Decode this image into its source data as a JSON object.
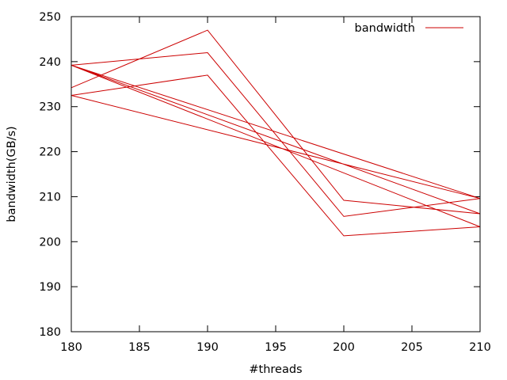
{
  "chart_data": {
    "type": "line",
    "xlabel": "#threads",
    "ylabel": "bandwidth(GB/s)",
    "xlim": [
      180,
      210
    ],
    "ylim": [
      180,
      250
    ],
    "xticks": [
      180,
      185,
      190,
      195,
      200,
      205,
      210
    ],
    "yticks": [
      180,
      190,
      200,
      210,
      220,
      230,
      240,
      250
    ],
    "grid": false,
    "legend_position": "top-right",
    "line_color": "#cc0000",
    "series": [
      {
        "name": "bandwidth",
        "points": [
          [
            180,
            234.2
          ],
          [
            190,
            247.0
          ],
          [
            200,
            209.2
          ],
          [
            210,
            206.2
          ],
          [
            180,
            239.2
          ],
          [
            190,
            242.0
          ],
          [
            200,
            205.6
          ],
          [
            210,
            209.6
          ],
          [
            180,
            232.5
          ],
          [
            190,
            237.0
          ],
          [
            200,
            201.3
          ],
          [
            210,
            203.3
          ],
          [
            180,
            239.2
          ],
          [
            210,
            209.6
          ]
        ]
      }
    ]
  }
}
